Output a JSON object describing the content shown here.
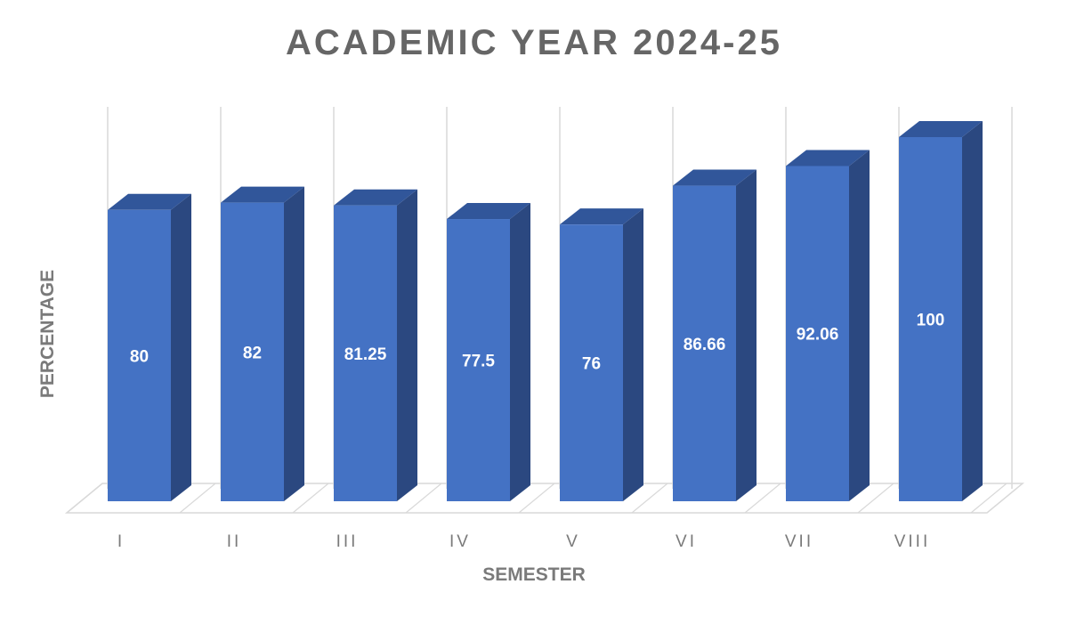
{
  "chart_data": {
    "type": "bar",
    "title": "ACADEMIC YEAR 2024-25",
    "xlabel": "SEMESTER",
    "ylabel": "PERCENTAGE",
    "categories": [
      "I",
      "II",
      "III",
      "IV",
      "V",
      "VI",
      "VII",
      "VIII"
    ],
    "values": [
      80,
      82,
      81.25,
      77.5,
      76,
      86.66,
      92.06,
      100
    ],
    "data_labels": [
      "80",
      "82",
      "81.25",
      "77.5",
      "76",
      "86.66",
      "92.06",
      "100"
    ],
    "ylim": [
      0,
      100
    ],
    "grid": true,
    "legend": "none",
    "style": "3d-column",
    "colors": {
      "bar_front": "#4472c4",
      "bar_side": "#2b4880",
      "bar_top": "#31569a",
      "grid": "#d9d9d9",
      "text": "#7a7a7a"
    }
  }
}
